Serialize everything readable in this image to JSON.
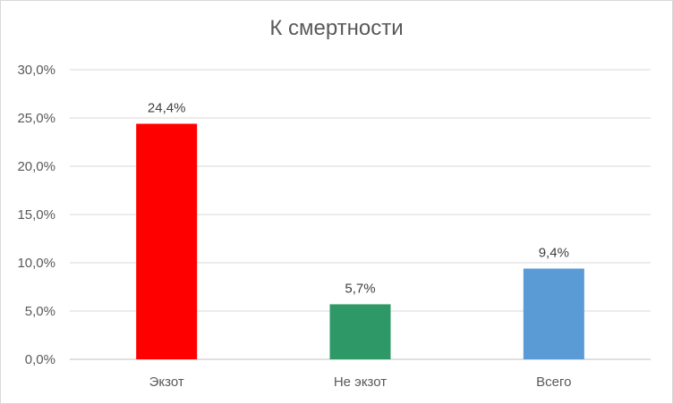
{
  "chart_data": {
    "type": "bar",
    "title": "К смертности",
    "categories": [
      "Экзот",
      "Не экзот",
      "Всего"
    ],
    "values": [
      24.4,
      5.7,
      9.4
    ],
    "value_labels": [
      "24,4%",
      "5,7%",
      "9,4%"
    ],
    "bar_colors": [
      "#ff0000",
      "#2e9966",
      "#5b9bd5"
    ],
    "y_ticks": [
      "0,0%",
      "5,0%",
      "10,0%",
      "15,0%",
      "20,0%",
      "25,0%",
      "30,0%"
    ],
    "ylim": [
      0,
      30
    ],
    "grid": true,
    "legend": false
  },
  "colors": {
    "grid": "#d9d9d9",
    "text": "#595959"
  }
}
